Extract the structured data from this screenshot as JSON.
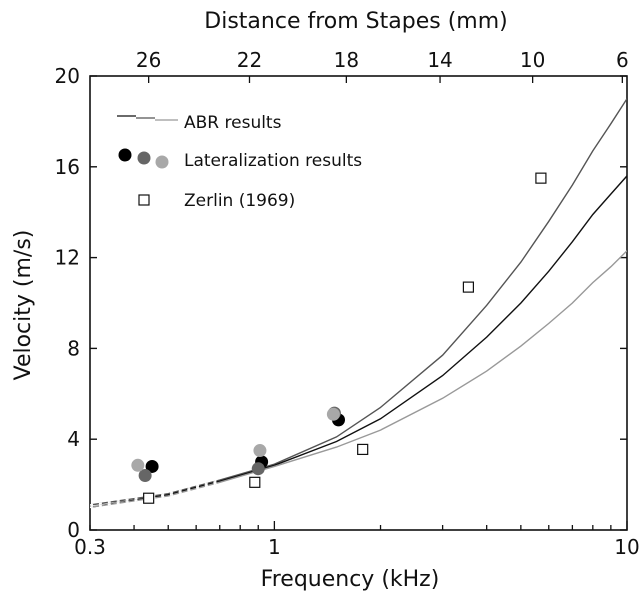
{
  "chart_data": {
    "type": "scatter",
    "xlabel": "Frequency (kHz)",
    "ylabel": "Velocity (m/s)",
    "top_axis_label": "Distance from Stapes (mm)",
    "x_scale": "log",
    "xlim": [
      0.3,
      10
    ],
    "ylim": [
      0,
      20
    ],
    "x_ticks": [
      {
        "value": 0.3,
        "label": "0.3"
      },
      {
        "value": 1,
        "label": "1"
      },
      {
        "value": 10,
        "label": "10"
      }
    ],
    "y_ticks": [
      {
        "value": 0,
        "label": "0"
      },
      {
        "value": 4,
        "label": "4"
      },
      {
        "value": 8,
        "label": "8"
      },
      {
        "value": 12,
        "label": "12"
      },
      {
        "value": 16,
        "label": "16"
      },
      {
        "value": 20,
        "label": "20"
      }
    ],
    "top_ticks": [
      {
        "freq": 0.44,
        "label": "26"
      },
      {
        "freq": 0.85,
        "label": "22"
      },
      {
        "freq": 1.6,
        "label": "18"
      },
      {
        "freq": 2.95,
        "label": "14"
      },
      {
        "freq": 5.4,
        "label": "10"
      },
      {
        "freq": 9.7,
        "label": "6"
      }
    ],
    "legend": [
      {
        "label": "ABR results",
        "kind": "lines"
      },
      {
        "label": "Lateralization results",
        "kind": "dots"
      },
      {
        "label": "Zerlin (1969)",
        "kind": "square"
      }
    ],
    "series": [
      {
        "name": "ABR results",
        "kind": "line",
        "color": "#555555",
        "x": [
          0.3,
          0.5,
          0.7,
          1,
          1.5,
          2,
          3,
          4,
          5,
          6,
          7,
          8,
          9,
          10
        ],
        "y": [
          1.1,
          1.6,
          2.2,
          2.9,
          4.1,
          5.4,
          7.7,
          9.9,
          11.8,
          13.6,
          15.2,
          16.7,
          17.9,
          19.0
        ]
      },
      {
        "name": "ABR results",
        "kind": "line",
        "color": "#111111",
        "x": [
          0.3,
          0.5,
          0.7,
          1,
          1.5,
          2,
          3,
          4,
          5,
          6,
          7,
          8,
          9,
          10
        ],
        "y": [
          1.0,
          1.55,
          2.15,
          2.85,
          3.9,
          4.9,
          6.8,
          8.5,
          10.0,
          11.4,
          12.7,
          13.9,
          14.8,
          15.6
        ]
      },
      {
        "name": "ABR results",
        "kind": "line",
        "color": "#999999",
        "x": [
          0.3,
          0.5,
          0.7,
          1,
          1.5,
          2,
          3,
          4,
          5,
          6,
          7,
          8,
          9,
          10
        ],
        "y": [
          1.0,
          1.5,
          2.1,
          2.8,
          3.65,
          4.4,
          5.8,
          7.0,
          8.1,
          9.1,
          10.0,
          10.9,
          11.6,
          12.3
        ]
      },
      {
        "name": "Lateralization results",
        "kind": "dots",
        "colors": [
          "#000000",
          "#666666",
          "#a8a8a8"
        ],
        "x": [
          0.45,
          0.43,
          0.41,
          0.92,
          0.9,
          0.91,
          1.52,
          1.48,
          1.47
        ],
        "y": [
          2.8,
          2.4,
          2.85,
          3.0,
          2.7,
          3.5,
          4.85,
          5.15,
          5.1
        ],
        "color_index": [
          0,
          1,
          2,
          0,
          1,
          2,
          0,
          1,
          2
        ]
      },
      {
        "name": "Zerlin (1969)",
        "kind": "square",
        "color": "#111111",
        "x": [
          0.44,
          0.88,
          1.78,
          3.55,
          5.7
        ],
        "y": [
          1.4,
          2.1,
          3.55,
          10.7,
          15.5
        ]
      }
    ]
  }
}
